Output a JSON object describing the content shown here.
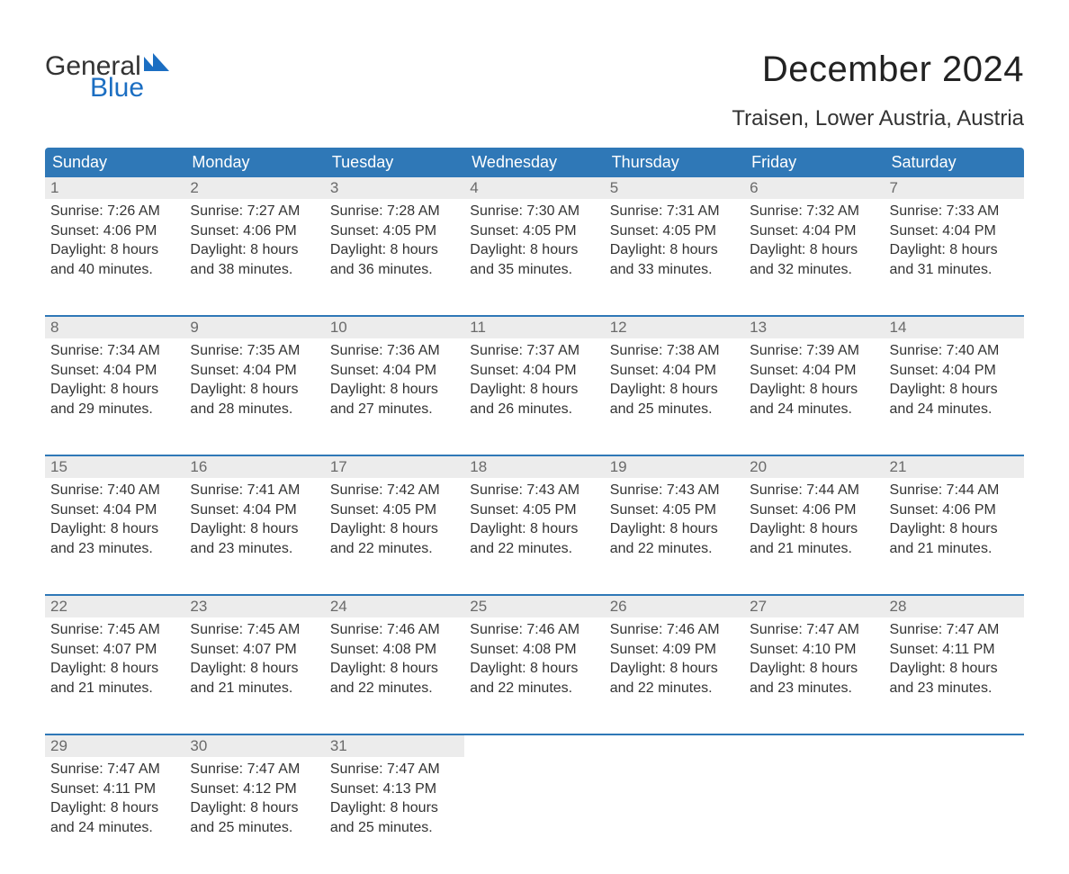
{
  "logo": {
    "word1": "General",
    "word2": "Blue",
    "accent_color": "#1b6ec2"
  },
  "title": "December 2024",
  "location": "Traisen, Lower Austria, Austria",
  "colors": {
    "header_bg": "#2f78b7",
    "header_text": "#ffffff",
    "daynum_bg": "#ececec",
    "daynum_text": "#6a6a6a",
    "body_text": "#333333",
    "week_divider": "#2f78b7",
    "page_bg": "#ffffff"
  },
  "fonts": {
    "title_size_pt": 40,
    "location_size_pt": 24,
    "header_size_pt": 18,
    "daynum_size_pt": 17,
    "cell_size_pt": 16,
    "family": "Arial"
  },
  "columns": [
    "Sunday",
    "Monday",
    "Tuesday",
    "Wednesday",
    "Thursday",
    "Friday",
    "Saturday"
  ],
  "weeks": [
    [
      {
        "day": "1",
        "sunrise": "Sunrise: 7:26 AM",
        "sunset": "Sunset: 4:06 PM",
        "dl1": "Daylight: 8 hours",
        "dl2": "and 40 minutes."
      },
      {
        "day": "2",
        "sunrise": "Sunrise: 7:27 AM",
        "sunset": "Sunset: 4:06 PM",
        "dl1": "Daylight: 8 hours",
        "dl2": "and 38 minutes."
      },
      {
        "day": "3",
        "sunrise": "Sunrise: 7:28 AM",
        "sunset": "Sunset: 4:05 PM",
        "dl1": "Daylight: 8 hours",
        "dl2": "and 36 minutes."
      },
      {
        "day": "4",
        "sunrise": "Sunrise: 7:30 AM",
        "sunset": "Sunset: 4:05 PM",
        "dl1": "Daylight: 8 hours",
        "dl2": "and 35 minutes."
      },
      {
        "day": "5",
        "sunrise": "Sunrise: 7:31 AM",
        "sunset": "Sunset: 4:05 PM",
        "dl1": "Daylight: 8 hours",
        "dl2": "and 33 minutes."
      },
      {
        "day": "6",
        "sunrise": "Sunrise: 7:32 AM",
        "sunset": "Sunset: 4:04 PM",
        "dl1": "Daylight: 8 hours",
        "dl2": "and 32 minutes."
      },
      {
        "day": "7",
        "sunrise": "Sunrise: 7:33 AM",
        "sunset": "Sunset: 4:04 PM",
        "dl1": "Daylight: 8 hours",
        "dl2": "and 31 minutes."
      }
    ],
    [
      {
        "day": "8",
        "sunrise": "Sunrise: 7:34 AM",
        "sunset": "Sunset: 4:04 PM",
        "dl1": "Daylight: 8 hours",
        "dl2": "and 29 minutes."
      },
      {
        "day": "9",
        "sunrise": "Sunrise: 7:35 AM",
        "sunset": "Sunset: 4:04 PM",
        "dl1": "Daylight: 8 hours",
        "dl2": "and 28 minutes."
      },
      {
        "day": "10",
        "sunrise": "Sunrise: 7:36 AM",
        "sunset": "Sunset: 4:04 PM",
        "dl1": "Daylight: 8 hours",
        "dl2": "and 27 minutes."
      },
      {
        "day": "11",
        "sunrise": "Sunrise: 7:37 AM",
        "sunset": "Sunset: 4:04 PM",
        "dl1": "Daylight: 8 hours",
        "dl2": "and 26 minutes."
      },
      {
        "day": "12",
        "sunrise": "Sunrise: 7:38 AM",
        "sunset": "Sunset: 4:04 PM",
        "dl1": "Daylight: 8 hours",
        "dl2": "and 25 minutes."
      },
      {
        "day": "13",
        "sunrise": "Sunrise: 7:39 AM",
        "sunset": "Sunset: 4:04 PM",
        "dl1": "Daylight: 8 hours",
        "dl2": "and 24 minutes."
      },
      {
        "day": "14",
        "sunrise": "Sunrise: 7:40 AM",
        "sunset": "Sunset: 4:04 PM",
        "dl1": "Daylight: 8 hours",
        "dl2": "and 24 minutes."
      }
    ],
    [
      {
        "day": "15",
        "sunrise": "Sunrise: 7:40 AM",
        "sunset": "Sunset: 4:04 PM",
        "dl1": "Daylight: 8 hours",
        "dl2": "and 23 minutes."
      },
      {
        "day": "16",
        "sunrise": "Sunrise: 7:41 AM",
        "sunset": "Sunset: 4:04 PM",
        "dl1": "Daylight: 8 hours",
        "dl2": "and 23 minutes."
      },
      {
        "day": "17",
        "sunrise": "Sunrise: 7:42 AM",
        "sunset": "Sunset: 4:05 PM",
        "dl1": "Daylight: 8 hours",
        "dl2": "and 22 minutes."
      },
      {
        "day": "18",
        "sunrise": "Sunrise: 7:43 AM",
        "sunset": "Sunset: 4:05 PM",
        "dl1": "Daylight: 8 hours",
        "dl2": "and 22 minutes."
      },
      {
        "day": "19",
        "sunrise": "Sunrise: 7:43 AM",
        "sunset": "Sunset: 4:05 PM",
        "dl1": "Daylight: 8 hours",
        "dl2": "and 22 minutes."
      },
      {
        "day": "20",
        "sunrise": "Sunrise: 7:44 AM",
        "sunset": "Sunset: 4:06 PM",
        "dl1": "Daylight: 8 hours",
        "dl2": "and 21 minutes."
      },
      {
        "day": "21",
        "sunrise": "Sunrise: 7:44 AM",
        "sunset": "Sunset: 4:06 PM",
        "dl1": "Daylight: 8 hours",
        "dl2": "and 21 minutes."
      }
    ],
    [
      {
        "day": "22",
        "sunrise": "Sunrise: 7:45 AM",
        "sunset": "Sunset: 4:07 PM",
        "dl1": "Daylight: 8 hours",
        "dl2": "and 21 minutes."
      },
      {
        "day": "23",
        "sunrise": "Sunrise: 7:45 AM",
        "sunset": "Sunset: 4:07 PM",
        "dl1": "Daylight: 8 hours",
        "dl2": "and 21 minutes."
      },
      {
        "day": "24",
        "sunrise": "Sunrise: 7:46 AM",
        "sunset": "Sunset: 4:08 PM",
        "dl1": "Daylight: 8 hours",
        "dl2": "and 22 minutes."
      },
      {
        "day": "25",
        "sunrise": "Sunrise: 7:46 AM",
        "sunset": "Sunset: 4:08 PM",
        "dl1": "Daylight: 8 hours",
        "dl2": "and 22 minutes."
      },
      {
        "day": "26",
        "sunrise": "Sunrise: 7:46 AM",
        "sunset": "Sunset: 4:09 PM",
        "dl1": "Daylight: 8 hours",
        "dl2": "and 22 minutes."
      },
      {
        "day": "27",
        "sunrise": "Sunrise: 7:47 AM",
        "sunset": "Sunset: 4:10 PM",
        "dl1": "Daylight: 8 hours",
        "dl2": "and 23 minutes."
      },
      {
        "day": "28",
        "sunrise": "Sunrise: 7:47 AM",
        "sunset": "Sunset: 4:11 PM",
        "dl1": "Daylight: 8 hours",
        "dl2": "and 23 minutes."
      }
    ],
    [
      {
        "day": "29",
        "sunrise": "Sunrise: 7:47 AM",
        "sunset": "Sunset: 4:11 PM",
        "dl1": "Daylight: 8 hours",
        "dl2": "and 24 minutes."
      },
      {
        "day": "30",
        "sunrise": "Sunrise: 7:47 AM",
        "sunset": "Sunset: 4:12 PM",
        "dl1": "Daylight: 8 hours",
        "dl2": "and 25 minutes."
      },
      {
        "day": "31",
        "sunrise": "Sunrise: 7:47 AM",
        "sunset": "Sunset: 4:13 PM",
        "dl1": "Daylight: 8 hours",
        "dl2": "and 25 minutes."
      },
      null,
      null,
      null,
      null
    ]
  ]
}
